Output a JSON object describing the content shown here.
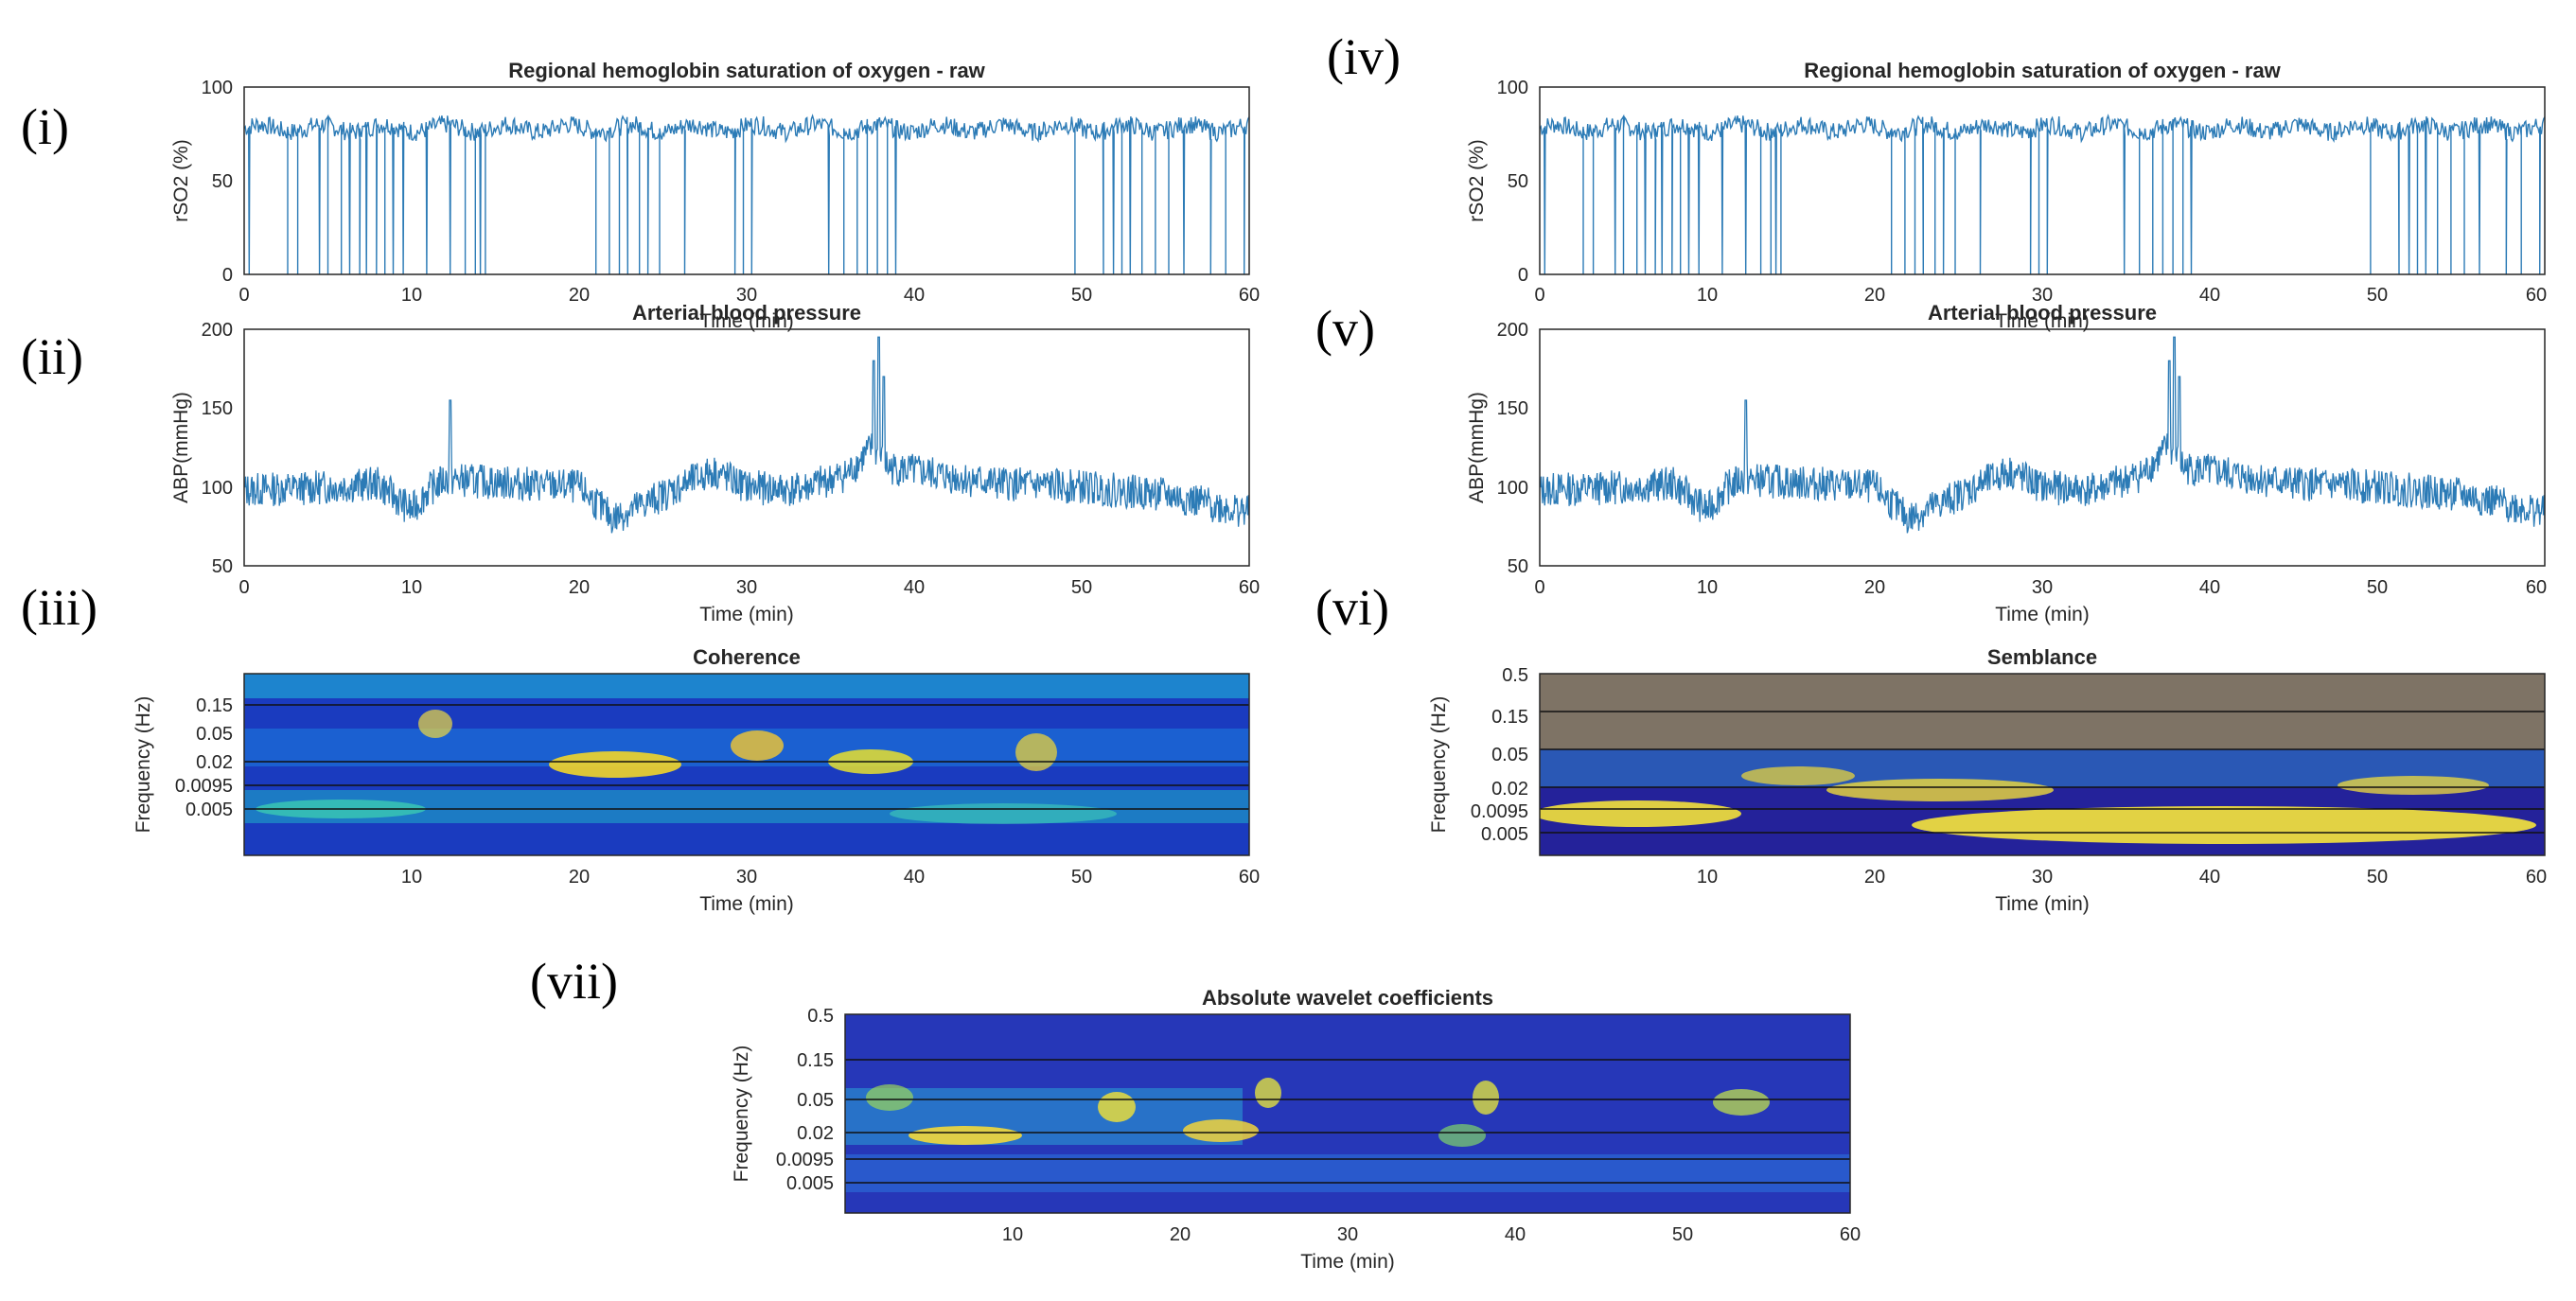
{
  "colors": {
    "series": "#2c7bb6",
    "axis": "#262626",
    "hlines": "#111111"
  },
  "panel_labels": [
    "(i)",
    "(ii)",
    "(iii)",
    "(iv)",
    "(v)",
    "(vi)",
    "(vii)"
  ],
  "chart_data": [
    {
      "id": "i",
      "type": "line",
      "title": "Regional hemoglobin saturation of oxygen - raw",
      "xlabel": "Time (min)",
      "ylabel": "rSO2 (%)",
      "xlim": [
        0,
        60
      ],
      "ylim": [
        0,
        100
      ],
      "xticks": [
        "0",
        "10",
        "20",
        "30",
        "40",
        "50",
        "60"
      ],
      "yticks": [
        "0",
        "50",
        "100"
      ],
      "baseline": 78,
      "dropouts_min": [
        0.3,
        2.6,
        3.2,
        4.5,
        5.0,
        5.8,
        6.3,
        6.9,
        7.3,
        7.9,
        8.4,
        8.9,
        9.5,
        10.9,
        12.3,
        13.2,
        13.8,
        14.1,
        14.4,
        21.0,
        21.8,
        22.4,
        22.9,
        23.6,
        24.1,
        24.8,
        25.5,
        26.3,
        29.3,
        29.8,
        30.3,
        34.9,
        35.8,
        36.6,
        37.2,
        37.8,
        38.4,
        38.9,
        49.6,
        51.3,
        51.9,
        52.4,
        52.9,
        53.6,
        54.4,
        55.2,
        56.1,
        57.7,
        58.6,
        59.7
      ]
    },
    {
      "id": "ii",
      "type": "line",
      "title": "Arterial blood pressure",
      "xlabel": "Time (min)",
      "ylabel": "ABP(mmHg)",
      "xlim": [
        0,
        60
      ],
      "ylim": [
        50,
        200
      ],
      "xticks": [
        "0",
        "10",
        "20",
        "30",
        "40",
        "50",
        "60"
      ],
      "yticks": [
        "50",
        "100",
        "150",
        "200"
      ],
      "segments": [
        [
          0,
          98
        ],
        [
          5,
          100
        ],
        [
          8,
          102
        ],
        [
          10,
          85
        ],
        [
          11,
          98
        ],
        [
          12,
          105
        ],
        [
          15,
          103
        ],
        [
          20,
          100
        ],
        [
          22,
          80
        ],
        [
          25,
          95
        ],
        [
          28,
          110
        ],
        [
          30,
          100
        ],
        [
          33,
          98
        ],
        [
          36,
          108
        ],
        [
          37.5,
          125
        ],
        [
          38.5,
          112
        ],
        [
          40,
          110
        ],
        [
          45,
          102
        ],
        [
          50,
          100
        ],
        [
          55,
          95
        ],
        [
          58,
          88
        ],
        [
          60,
          84
        ]
      ],
      "spikes": [
        [
          12.3,
          155
        ],
        [
          37.6,
          180
        ],
        [
          37.9,
          195
        ],
        [
          38.2,
          170
        ]
      ]
    },
    {
      "id": "iii",
      "type": "heatmap",
      "title": "Coherence",
      "xlabel": "Time (min)",
      "ylabel": "Frequency (Hz)",
      "xlim": [
        0,
        60
      ],
      "xticks": [
        "10",
        "20",
        "30",
        "40",
        "50",
        "60"
      ],
      "yticks": [
        "0.15",
        "0.05",
        "0.02",
        "0.0095",
        "0.005"
      ]
    },
    {
      "id": "iv",
      "type": "line",
      "title": "Regional hemoglobin saturation of oxygen - raw",
      "xlabel": "Time (min)",
      "ylabel": "rSO2 (%)",
      "xlim": [
        0,
        60
      ],
      "ylim": [
        0,
        100
      ],
      "xticks": [
        "0",
        "10",
        "20",
        "30",
        "40",
        "50",
        "60"
      ],
      "yticks": [
        "0",
        "50",
        "100"
      ],
      "baseline": 78,
      "dropouts_min": [
        0.3,
        2.6,
        3.2,
        4.5,
        5.0,
        5.8,
        6.3,
        6.9,
        7.3,
        7.9,
        8.4,
        8.9,
        9.5,
        10.9,
        12.3,
        13.2,
        13.8,
        14.1,
        14.4,
        21.0,
        21.8,
        22.4,
        22.9,
        23.6,
        24.1,
        24.8,
        25.5,
        26.3,
        29.3,
        29.8,
        30.3,
        34.9,
        35.8,
        36.6,
        37.2,
        37.8,
        38.4,
        38.9,
        49.6,
        51.3,
        51.9,
        52.4,
        52.9,
        53.6,
        54.4,
        55.2,
        56.1,
        57.7,
        58.6,
        59.7
      ]
    },
    {
      "id": "v",
      "type": "line",
      "title": "Arterial blood pressure",
      "xlabel": "Time (min)",
      "ylabel": "ABP(mmHg)",
      "xlim": [
        0,
        60
      ],
      "ylim": [
        50,
        200
      ],
      "xticks": [
        "0",
        "10",
        "20",
        "30",
        "40",
        "50",
        "60"
      ],
      "yticks": [
        "50",
        "100",
        "150",
        "200"
      ],
      "segments": [
        [
          0,
          98
        ],
        [
          5,
          100
        ],
        [
          8,
          102
        ],
        [
          10,
          85
        ],
        [
          11,
          98
        ],
        [
          12,
          105
        ],
        [
          15,
          103
        ],
        [
          20,
          100
        ],
        [
          22,
          80
        ],
        [
          25,
          95
        ],
        [
          28,
          110
        ],
        [
          30,
          100
        ],
        [
          33,
          98
        ],
        [
          36,
          108
        ],
        [
          37.5,
          125
        ],
        [
          38.5,
          112
        ],
        [
          40,
          110
        ],
        [
          45,
          102
        ],
        [
          50,
          100
        ],
        [
          55,
          95
        ],
        [
          58,
          88
        ],
        [
          60,
          84
        ]
      ],
      "spikes": [
        [
          12.3,
          155
        ],
        [
          37.6,
          180
        ],
        [
          37.9,
          195
        ],
        [
          38.2,
          170
        ]
      ]
    },
    {
      "id": "vi",
      "type": "heatmap",
      "title": "Semblance",
      "xlabel": "Time (min)",
      "ylabel": "Frequency (Hz)",
      "xlim": [
        0,
        60
      ],
      "xticks": [
        "10",
        "20",
        "30",
        "40",
        "50",
        "60"
      ],
      "yticks": [
        "0.5",
        "0.15",
        "0.05",
        "0.02",
        "0.0095",
        "0.005"
      ]
    },
    {
      "id": "vii",
      "type": "heatmap",
      "title": "Absolute wavelet coefficients",
      "xlabel": "Time (min)",
      "ylabel": "Frequency (Hz)",
      "xlim": [
        0,
        60
      ],
      "xticks": [
        "10",
        "20",
        "30",
        "40",
        "50",
        "60"
      ],
      "yticks": [
        "0.5",
        "0.15",
        "0.05",
        "0.02",
        "0.0095",
        "0.005"
      ]
    }
  ]
}
